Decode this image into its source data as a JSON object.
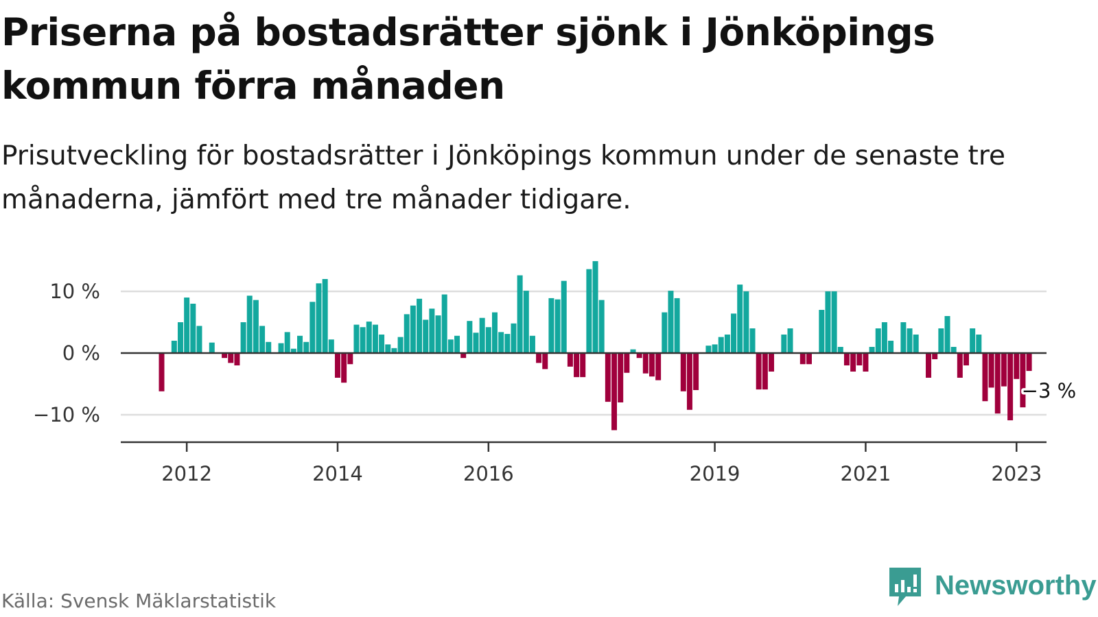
{
  "title": "Priserna på bostadsrätter sjönk i Jönköpings kommun förra månaden",
  "subtitle": "Prisutveckling för bostadsrätter i Jönköpings kommun under de senaste tre månaderna, jämfört med tre månader tidigare.",
  "source": "Källa: Svensk Mäklarstatistik",
  "brand": "Newsworthy",
  "colors": {
    "positive": "#13a89e",
    "negative": "#a0003c",
    "grid": "#dddddd",
    "axis": "#333333",
    "brand": "#3a9c92"
  },
  "chart_data": {
    "type": "bar",
    "title": "",
    "xlabel": "",
    "ylabel": "",
    "ylim": [
      -14.5,
      15.5
    ],
    "y_ticks": [
      10,
      0,
      -10
    ],
    "y_tick_labels": [
      "10 %",
      "0 %",
      "−10 %"
    ],
    "x_tick_labels": [
      "2012",
      "2014",
      "2016",
      "2019",
      "2021",
      "2023"
    ],
    "x_tick_positions": [
      4,
      28,
      52,
      88,
      112,
      136
    ],
    "x_start_index": 0,
    "grid": true,
    "legend": "none",
    "annotation": {
      "text": "−3 %",
      "index": 137
    },
    "values": [
      -6.2,
      0,
      2.0,
      5.0,
      9.0,
      8.0,
      4.4,
      0,
      1.7,
      0,
      -0.8,
      -1.6,
      -2.0,
      5.0,
      9.3,
      8.6,
      4.4,
      1.8,
      0,
      1.6,
      3.4,
      0.7,
      2.8,
      1.8,
      8.3,
      11.3,
      12.0,
      2.2,
      -4.0,
      -4.8,
      -1.8,
      4.6,
      4.2,
      5.1,
      4.6,
      3.0,
      1.4,
      0.8,
      2.6,
      6.3,
      7.7,
      8.8,
      5.4,
      7.2,
      6.1,
      9.5,
      2.2,
      2.8,
      -0.8,
      5.2,
      3.3,
      5.7,
      4.2,
      6.6,
      3.4,
      3.1,
      4.8,
      12.6,
      10.1,
      2.8,
      -1.6,
      -2.6,
      8.9,
      8.7,
      11.7,
      -2.2,
      -3.9,
      -3.9,
      13.6,
      14.9,
      8.6,
      -7.9,
      -12.5,
      -8.0,
      -3.2,
      0.6,
      -0.8,
      -3.3,
      -3.8,
      -4.4,
      6.6,
      10.1,
      8.9,
      -6.2,
      -9.2,
      -6.0,
      0,
      1.2,
      1.4,
      2.6,
      3.0,
      6.4,
      11.1,
      10.0,
      4.0,
      -5.9,
      -5.9,
      -3.0,
      0,
      3.0,
      4.0,
      0,
      -1.8,
      -1.8,
      0,
      7.0,
      10.0,
      10.0,
      1.0,
      -2.0,
      -3.0,
      -2.0,
      -3.0,
      1.0,
      4.0,
      5.0,
      2.0,
      0,
      5.0,
      4.0,
      3.0,
      0,
      -4.0,
      -1.0,
      4.0,
      6.0,
      1.0,
      -4.0,
      -2.0,
      4.0,
      3.0,
      -7.8,
      -5.6,
      -9.8,
      -5.4,
      -10.9,
      -4.2,
      -8.8,
      -2.9
    ]
  }
}
